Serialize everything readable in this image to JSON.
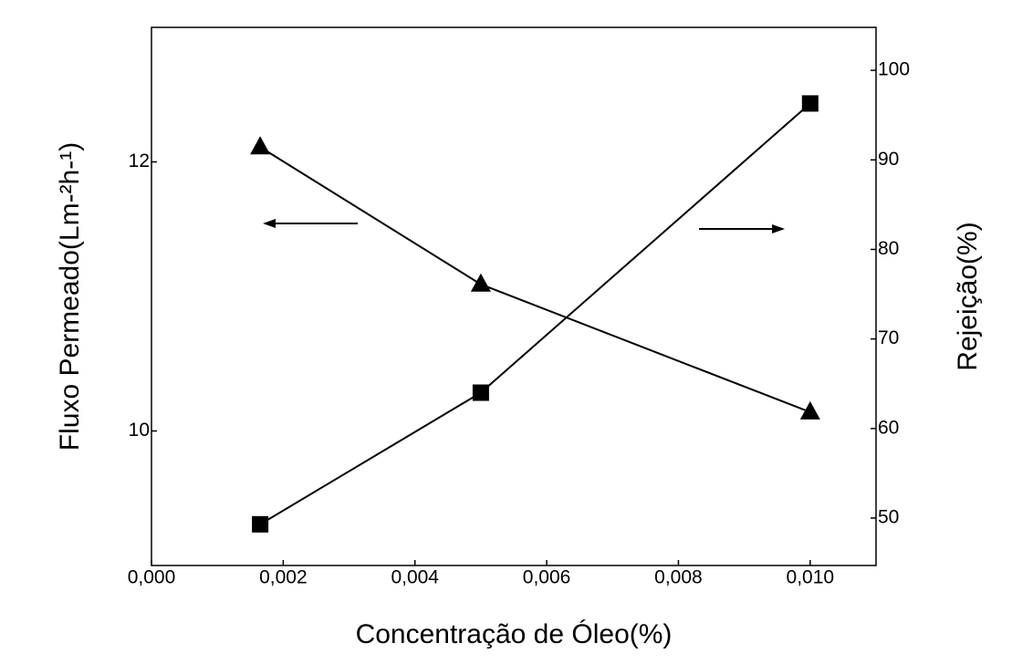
{
  "chart_data": {
    "type": "line",
    "xlabel": "Concentração de Óleo(%)",
    "ylabel": "Fluxo Permeado(Lm-²h-¹)",
    "y2label": "Rejeição(%)",
    "x": [
      0.00165,
      0.005,
      0.01
    ],
    "series": [
      {
        "color": "#000000",
        "marker": "triangle",
        "values": [
          12.11,
          11.09,
          10.14
        ]
      },
      {
        "color": "#000000",
        "marker": "square",
        "axis": "y2",
        "values": [
          49.3,
          64,
          96.3
        ]
      }
    ],
    "xlim": [
      0,
      0.011
    ],
    "xticks": [
      {
        "value": 0,
        "label": "0,000"
      },
      {
        "value": 0.002,
        "label": "0,002"
      },
      {
        "value": 0.004,
        "label": "0,004"
      },
      {
        "value": 0.006,
        "label": "0,006"
      },
      {
        "value": 0.008,
        "label": "0,008"
      },
      {
        "value": 0.01,
        "label": "0,010"
      }
    ],
    "ylim": [
      9,
      13
    ],
    "yticks": [
      10,
      12
    ],
    "y2lim": [
      44.7,
      104.8
    ],
    "y2ticks": [
      50,
      60,
      70,
      80,
      90,
      100
    ]
  }
}
